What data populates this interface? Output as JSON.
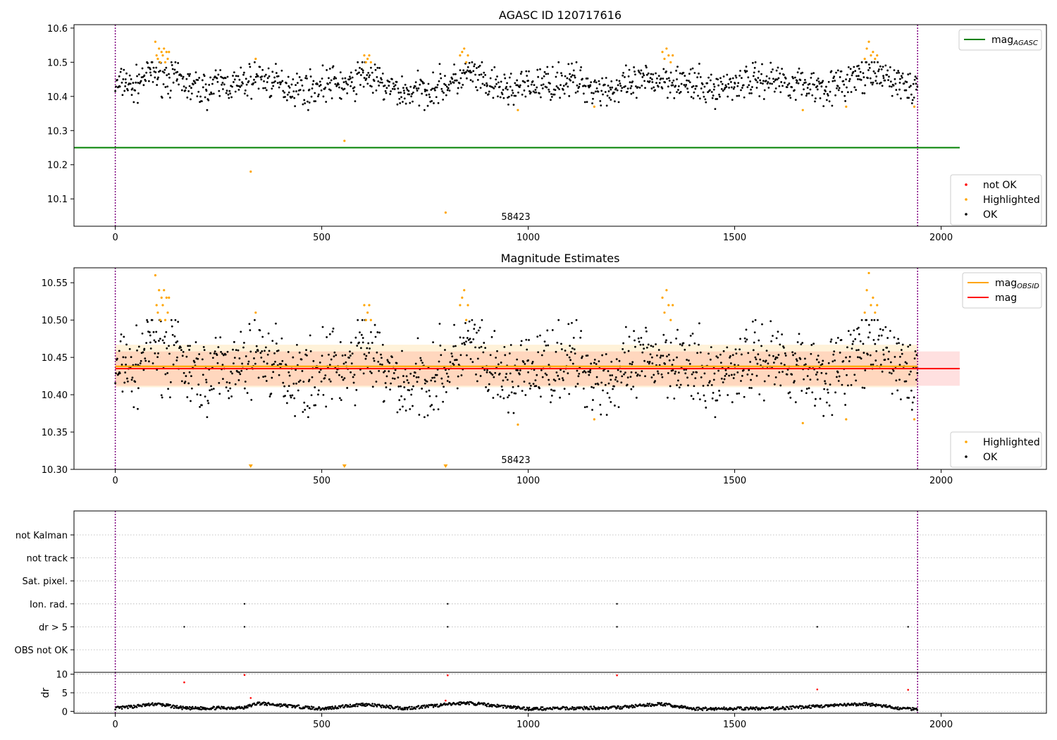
{
  "colors": {
    "ok": "#000000",
    "highlighted": "#ffa500",
    "not_ok": "#ff0000",
    "mag_agasc": "#008000",
    "mag_obsid": "#ffa500",
    "mag": "#ff0000",
    "obs_boundary": "#800080",
    "grid": "#b0b0b0"
  },
  "chart_data": [
    {
      "type": "scatter",
      "title": "AGASC ID 120717616",
      "xlim": [
        -100,
        2255
      ],
      "ylim": [
        10.02,
        10.61
      ],
      "x_ticks": [
        0,
        500,
        1000,
        1500,
        2000
      ],
      "y_ticks": [
        10.1,
        10.2,
        10.3,
        10.4,
        10.5,
        10.6
      ],
      "y_tick_labels": [
        "10.1",
        "10.2",
        "10.3",
        "10.4",
        "10.5",
        "10.6"
      ],
      "obs_boundaries": [
        0,
        1943
      ],
      "obs_label": {
        "text": "58423",
        "x": 970
      },
      "legends": [
        {
          "position": "upper right",
          "entries": [
            {
              "label": "mag",
              "sub": "AGASC",
              "marker": "line",
              "color": "#008000"
            }
          ]
        },
        {
          "position": "lower right",
          "entries": [
            {
              "label": "not OK",
              "marker": "dot",
              "color": "#ff0000"
            },
            {
              "label": "Highlighted",
              "marker": "dot",
              "color": "#ffa500"
            },
            {
              "label": "OK",
              "marker": "dot",
              "color": "#000000"
            }
          ]
        }
      ],
      "mag_agasc": 10.25,
      "hline_range": [
        -100,
        2045
      ],
      "highlighted_points": [
        [
          97,
          10.56
        ],
        [
          100,
          10.52
        ],
        [
          103,
          10.51
        ],
        [
          106,
          10.54
        ],
        [
          109,
          10.5
        ],
        [
          112,
          10.53
        ],
        [
          115,
          10.52
        ],
        [
          118,
          10.54
        ],
        [
          121,
          10.5
        ],
        [
          124,
          10.53
        ],
        [
          127,
          10.51
        ],
        [
          130,
          10.53
        ],
        [
          340,
          10.51
        ],
        [
          328,
          10.18
        ],
        [
          555,
          10.27
        ],
        [
          800,
          10.06
        ],
        [
          603,
          10.52
        ],
        [
          607,
          10.5
        ],
        [
          611,
          10.51
        ],
        [
          615,
          10.52
        ],
        [
          619,
          10.5
        ],
        [
          835,
          10.52
        ],
        [
          840,
          10.53
        ],
        [
          845,
          10.54
        ],
        [
          850,
          10.5
        ],
        [
          854,
          10.52
        ],
        [
          975,
          10.36
        ],
        [
          1160,
          10.37
        ],
        [
          1325,
          10.53
        ],
        [
          1330,
          10.51
        ],
        [
          1335,
          10.54
        ],
        [
          1340,
          10.52
        ],
        [
          1345,
          10.5
        ],
        [
          1350,
          10.52
        ],
        [
          1665,
          10.36
        ],
        [
          1770,
          10.37
        ],
        [
          1815,
          10.51
        ],
        [
          1820,
          10.54
        ],
        [
          1825,
          10.56
        ],
        [
          1830,
          10.52
        ],
        [
          1835,
          10.53
        ],
        [
          1840,
          10.51
        ],
        [
          1845,
          10.52
        ],
        [
          1935,
          10.37
        ]
      ],
      "ok_points": [
        [
          10,
          10.43
        ],
        [
          25,
          10.45
        ],
        [
          40,
          10.42
        ],
        [
          55,
          10.44
        ],
        [
          70,
          10.46
        ],
        [
          85,
          10.47
        ],
        [
          150,
          10.45
        ],
        [
          180,
          10.43
        ],
        [
          220,
          10.42
        ],
        [
          260,
          10.44
        ],
        [
          300,
          10.43
        ],
        [
          345,
          10.46
        ],
        [
          380,
          10.44
        ],
        [
          420,
          10.43
        ],
        [
          470,
          10.42
        ],
        [
          520,
          10.44
        ],
        [
          570,
          10.43
        ],
        [
          600,
          10.47
        ],
        [
          650,
          10.43
        ],
        [
          700,
          10.41
        ],
        [
          750,
          10.42
        ],
        [
          820,
          10.44
        ],
        [
          860,
          10.47
        ],
        [
          900,
          10.43
        ],
        [
          950,
          10.42
        ],
        [
          1000,
          10.43
        ],
        [
          1050,
          10.44
        ],
        [
          1100,
          10.45
        ],
        [
          1150,
          10.43
        ],
        [
          1200,
          10.42
        ],
        [
          1250,
          10.43
        ],
        [
          1300,
          10.45
        ],
        [
          1360,
          10.45
        ],
        [
          1400,
          10.43
        ],
        [
          1450,
          10.42
        ],
        [
          1500,
          10.44
        ],
        [
          1550,
          10.45
        ],
        [
          1600,
          10.45
        ],
        [
          1650,
          10.44
        ],
        [
          1700,
          10.43
        ],
        [
          1750,
          10.43
        ],
        [
          1800,
          10.46
        ],
        [
          1860,
          10.46
        ],
        [
          1900,
          10.44
        ],
        [
          1940,
          10.42
        ]
      ]
    },
    {
      "type": "scatter",
      "title": "Magnitude Estimates",
      "xlim": [
        -100,
        2255
      ],
      "ylim": [
        10.3,
        10.57
      ],
      "x_ticks": [
        0,
        500,
        1000,
        1500,
        2000
      ],
      "y_ticks": [
        10.3,
        10.35,
        10.4,
        10.45,
        10.5,
        10.55
      ],
      "y_tick_labels": [
        "10.30",
        "10.35",
        "10.40",
        "10.45",
        "10.50",
        "10.55"
      ],
      "obs_boundaries": [
        0,
        1943
      ],
      "obs_label": {
        "text": "58423",
        "x": 970
      },
      "legends": [
        {
          "position": "upper right",
          "entries": [
            {
              "label": "mag",
              "sub": "OBSID",
              "marker": "line",
              "color": "#ffa500"
            },
            {
              "label": "mag",
              "marker": "line",
              "color": "#ff0000"
            }
          ]
        },
        {
          "position": "lower right",
          "entries": [
            {
              "label": "Highlighted",
              "marker": "dot",
              "color": "#ffa500"
            },
            {
              "label": "OK",
              "marker": "dot",
              "color": "#000000"
            }
          ]
        }
      ],
      "mag": 10.435,
      "mag_band": [
        10.412,
        10.458
      ],
      "mag_range": [
        0,
        2045
      ],
      "mag_obsid": 10.438,
      "mag_obsid_band": [
        10.41,
        10.467
      ],
      "mag_obsid_range": [
        0,
        1943
      ],
      "highlighted_points": [
        [
          97,
          10.56
        ],
        [
          100,
          10.52
        ],
        [
          103,
          10.51
        ],
        [
          106,
          10.54
        ],
        [
          109,
          10.5
        ],
        [
          112,
          10.53
        ],
        [
          115,
          10.52
        ],
        [
          118,
          10.54
        ],
        [
          121,
          10.5
        ],
        [
          124,
          10.53
        ],
        [
          127,
          10.51
        ],
        [
          130,
          10.53
        ],
        [
          340,
          10.51
        ],
        [
          603,
          10.52
        ],
        [
          607,
          10.5
        ],
        [
          611,
          10.51
        ],
        [
          615,
          10.52
        ],
        [
          619,
          10.5
        ],
        [
          835,
          10.52
        ],
        [
          840,
          10.53
        ],
        [
          845,
          10.54
        ],
        [
          850,
          10.5
        ],
        [
          854,
          10.52
        ],
        [
          975,
          10.36
        ],
        [
          1160,
          10.367
        ],
        [
          1325,
          10.53
        ],
        [
          1330,
          10.51
        ],
        [
          1335,
          10.54
        ],
        [
          1340,
          10.52
        ],
        [
          1345,
          10.5
        ],
        [
          1350,
          10.52
        ],
        [
          1665,
          10.362
        ],
        [
          1770,
          10.367
        ],
        [
          1815,
          10.51
        ],
        [
          1820,
          10.54
        ],
        [
          1825,
          10.563
        ],
        [
          1830,
          10.52
        ],
        [
          1835,
          10.53
        ],
        [
          1840,
          10.51
        ],
        [
          1845,
          10.52
        ],
        [
          1935,
          10.367
        ]
      ],
      "off_scale_markers": [
        328,
        555,
        800
      ],
      "ok_points": [
        [
          10,
          10.43
        ],
        [
          25,
          10.45
        ],
        [
          40,
          10.42
        ],
        [
          55,
          10.44
        ],
        [
          70,
          10.46
        ],
        [
          85,
          10.47
        ],
        [
          150,
          10.45
        ],
        [
          180,
          10.43
        ],
        [
          220,
          10.42
        ],
        [
          260,
          10.44
        ],
        [
          300,
          10.43
        ],
        [
          345,
          10.46
        ],
        [
          380,
          10.44
        ],
        [
          420,
          10.43
        ],
        [
          470,
          10.42
        ],
        [
          520,
          10.44
        ],
        [
          570,
          10.43
        ],
        [
          600,
          10.47
        ],
        [
          650,
          10.43
        ],
        [
          700,
          10.41
        ],
        [
          750,
          10.42
        ],
        [
          820,
          10.44
        ],
        [
          860,
          10.47
        ],
        [
          900,
          10.43
        ],
        [
          950,
          10.42
        ],
        [
          1000,
          10.43
        ],
        [
          1050,
          10.44
        ],
        [
          1100,
          10.45
        ],
        [
          1150,
          10.43
        ],
        [
          1200,
          10.42
        ],
        [
          1250,
          10.43
        ],
        [
          1300,
          10.45
        ],
        [
          1360,
          10.45
        ],
        [
          1400,
          10.43
        ],
        [
          1450,
          10.42
        ],
        [
          1500,
          10.44
        ],
        [
          1550,
          10.45
        ],
        [
          1600,
          10.45
        ],
        [
          1650,
          10.44
        ],
        [
          1700,
          10.43
        ],
        [
          1750,
          10.43
        ],
        [
          1800,
          10.46
        ],
        [
          1860,
          10.46
        ],
        [
          1900,
          10.44
        ],
        [
          1940,
          10.42
        ]
      ]
    },
    {
      "type": "scatter",
      "title": "",
      "xlim": [
        -100,
        2255
      ],
      "obs_boundaries": [
        0,
        1943
      ],
      "flag_rows": [
        "not Kalman",
        "not track",
        "Sat. pixel.",
        "Ion. rad.",
        "dr > 5",
        "OBS not OK"
      ],
      "flag_points": {
        "Ion. rad.": [
          313,
          805,
          1215
        ],
        "dr > 5": [
          167,
          313,
          805,
          1215,
          1700,
          1920
        ]
      }
    },
    {
      "type": "scatter",
      "title": "",
      "ylabel": "dr",
      "xlim": [
        -100,
        2255
      ],
      "ylim": [
        -0.5,
        10.5
      ],
      "x_ticks": [
        0,
        500,
        1000,
        1500,
        2000
      ],
      "y_ticks": [
        0,
        5,
        10
      ],
      "y_tick_labels": [
        "0",
        "5",
        "10"
      ],
      "obs_boundaries": [
        0,
        1943
      ],
      "ok_points": [
        [
          10,
          0.9
        ],
        [
          100,
          2.0
        ],
        [
          170,
          0.8
        ],
        [
          313,
          1.0
        ],
        [
          345,
          2.2
        ],
        [
          500,
          0.7
        ],
        [
          600,
          1.9
        ],
        [
          700,
          0.8
        ],
        [
          850,
          2.3
        ],
        [
          1000,
          0.7
        ],
        [
          1215,
          1.0
        ],
        [
          1320,
          2.0
        ],
        [
          1400,
          0.7
        ],
        [
          1600,
          0.8
        ],
        [
          1820,
          2.0
        ],
        [
          1900,
          0.8
        ],
        [
          1940,
          0.7
        ]
      ],
      "not_ok_points": [
        [
          167,
          7.8
        ],
        [
          313,
          9.8
        ],
        [
          328,
          3.6
        ],
        [
          800,
          2.9
        ],
        [
          805,
          9.7
        ],
        [
          1215,
          9.7
        ],
        [
          1700,
          5.9
        ],
        [
          1920,
          5.8
        ]
      ]
    }
  ]
}
